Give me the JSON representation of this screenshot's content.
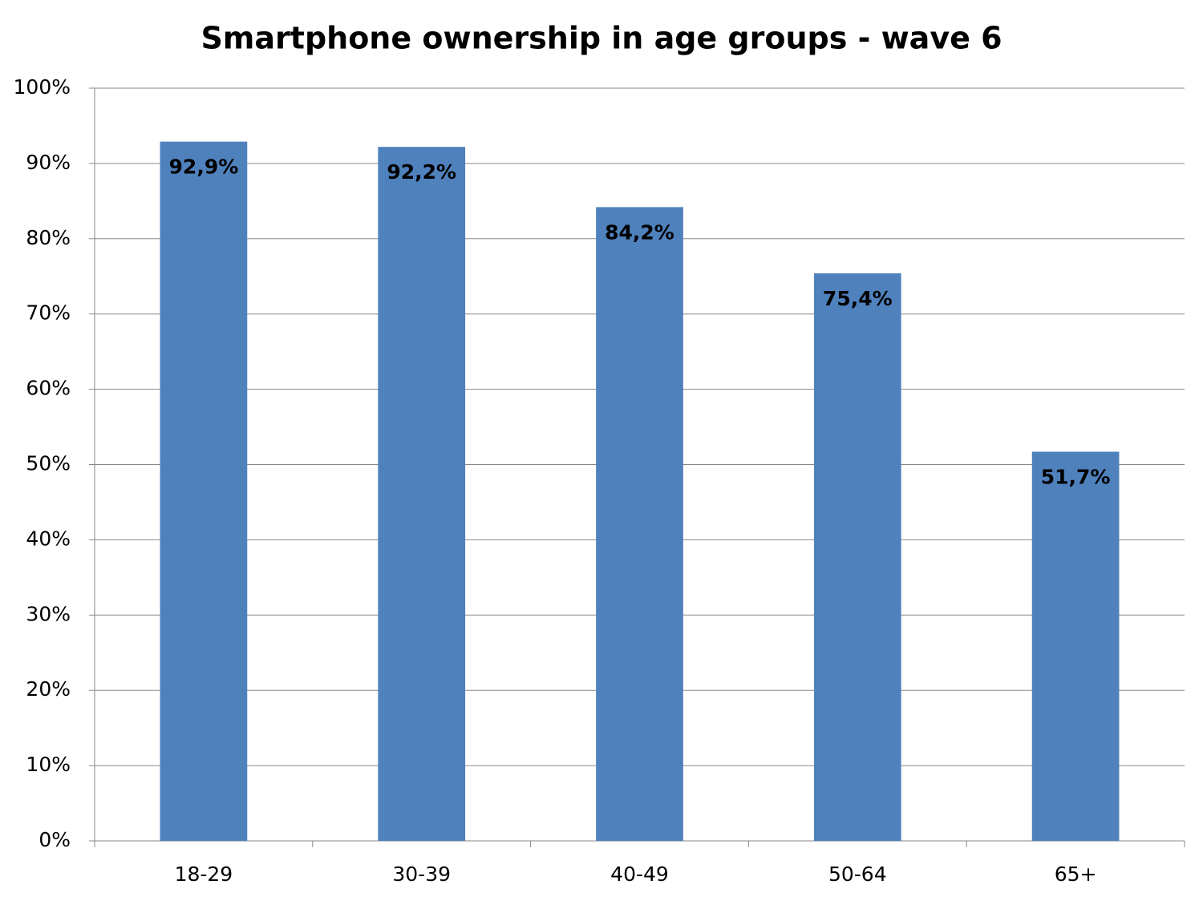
{
  "chart_data": {
    "type": "bar",
    "title": "Smartphone ownership in age groups - wave 6",
    "categories": [
      "18-29",
      "30-39",
      "40-49",
      "50-64",
      "65+"
    ],
    "values": [
      92.9,
      92.2,
      84.2,
      75.4,
      51.7
    ],
    "value_labels": [
      "92,9%",
      "92,2%",
      "84,2%",
      "75,4%",
      "51,7%"
    ],
    "color": "#4f81bd",
    "ylim": [
      0,
      100
    ],
    "yticks": [
      {
        "value": 0,
        "label": "0%"
      },
      {
        "value": 10,
        "label": "10%"
      },
      {
        "value": 20,
        "label": "20%"
      },
      {
        "value": 30,
        "label": "30%"
      },
      {
        "value": 40,
        "label": "40%"
      },
      {
        "value": 50,
        "label": "50%"
      },
      {
        "value": 60,
        "label": "60%"
      },
      {
        "value": 70,
        "label": "70%"
      },
      {
        "value": 80,
        "label": "80%"
      },
      {
        "value": 90,
        "label": "90%"
      },
      {
        "value": 100,
        "label": "100%"
      }
    ],
    "grid": true
  }
}
